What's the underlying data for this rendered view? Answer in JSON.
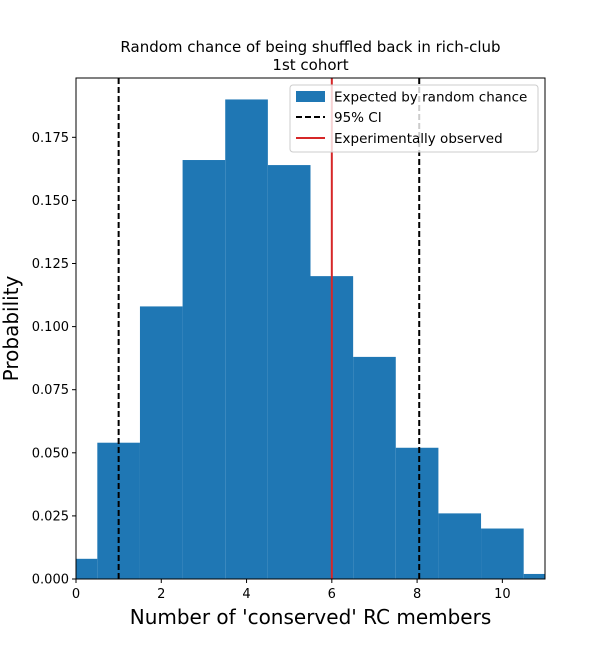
{
  "chart_data": {
    "type": "bar",
    "title": "Random chance of being shuffled back in rich-club",
    "subtitle": "1st cohort",
    "xlabel": "Number of 'conserved' RC members",
    "ylabel": "Probability",
    "xlim": [
      0,
      11
    ],
    "ylim": [
      0,
      0.1985
    ],
    "xticks": [
      0,
      2,
      4,
      6,
      8,
      10
    ],
    "xtick_labels": [
      "0",
      "2",
      "4",
      "6",
      "8",
      "10"
    ],
    "yticks": [
      0,
      0.025,
      0.05,
      0.075,
      0.1,
      0.125,
      0.15,
      0.175
    ],
    "ytick_labels": [
      "0.000",
      "0.025",
      "0.050",
      "0.075",
      "0.100",
      "0.125",
      "0.150",
      "0.175"
    ],
    "bar_color": "#1f77b4",
    "bins": [
      {
        "x0": -0.5,
        "x1": 0.5,
        "value": 0.008
      },
      {
        "x0": 0.5,
        "x1": 1.5,
        "value": 0.054
      },
      {
        "x0": 1.5,
        "x1": 2.5,
        "value": 0.108
      },
      {
        "x0": 2.5,
        "x1": 3.5,
        "value": 0.166
      },
      {
        "x0": 3.5,
        "x1": 4.5,
        "value": 0.19
      },
      {
        "x0": 4.5,
        "x1": 5.5,
        "value": 0.164
      },
      {
        "x0": 5.5,
        "x1": 6.5,
        "value": 0.12
      },
      {
        "x0": 6.5,
        "x1": 7.5,
        "value": 0.088
      },
      {
        "x0": 7.5,
        "x1": 8.5,
        "value": 0.052
      },
      {
        "x0": 8.5,
        "x1": 9.5,
        "value": 0.026
      },
      {
        "x0": 9.5,
        "x1": 10.5,
        "value": 0.02
      },
      {
        "x0": 10.5,
        "x1": 11.5,
        "value": 0.002
      }
    ],
    "ci_lines": [
      1.0,
      8.05
    ],
    "ci_color": "#000000",
    "observed_line": 6.0,
    "observed_color": "#d62728",
    "legend": {
      "placement": "top-right",
      "entries": [
        {
          "label": "Expected by random chance",
          "kind": "patch"
        },
        {
          "label": "95% CI",
          "kind": "dashed"
        },
        {
          "label": "Experimentally observed",
          "kind": "line"
        }
      ]
    }
  }
}
